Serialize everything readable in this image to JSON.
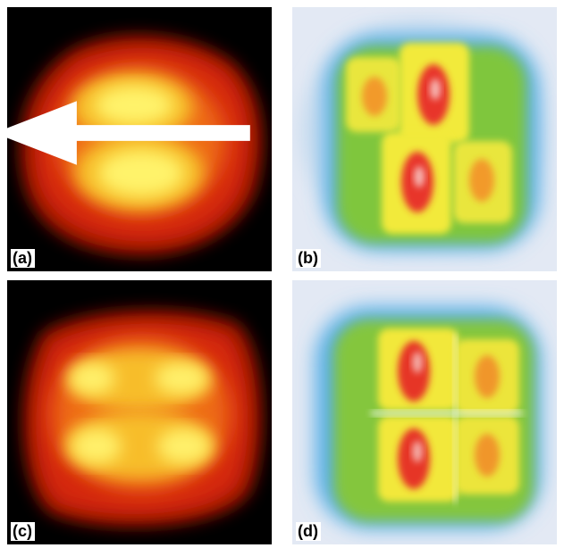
{
  "panels": [
    {
      "id": "a",
      "label": "(a)"
    },
    {
      "id": "b",
      "label": "(b)"
    },
    {
      "id": "c",
      "label": "(c)"
    },
    {
      "id": "d",
      "label": "(d)"
    }
  ],
  "direction": {
    "open": "[1",
    "bar": "1",
    "close": "0]",
    "arrow": "left-arrow-icon"
  },
  "colors": {
    "stm_background": "#000000",
    "stm_outer": "#c81d0c",
    "stm_mid": "#f07a10",
    "stm_core": "#ffe82e",
    "sim_background": "#e3e9f4",
    "sim_blue": "#4aa6e6",
    "sim_green": "#7cc63a",
    "sim_yellow": "#f4ea3c",
    "sim_red": "#e3232a"
  }
}
